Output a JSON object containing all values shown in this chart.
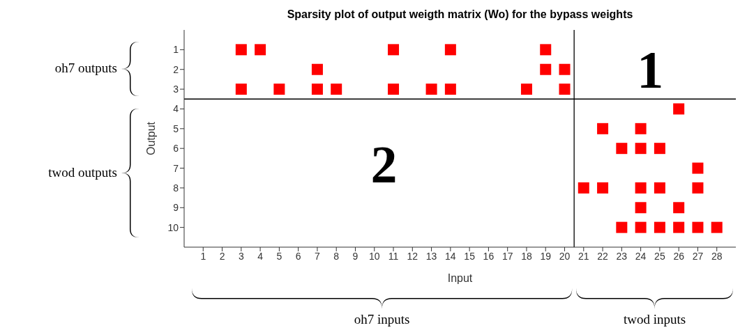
{
  "chart_data": {
    "type": "scatter",
    "title": "Sparsity plot of output weigth matrix (Wo) for the bypass weights",
    "xlabel": "Input",
    "ylabel": "Output",
    "series": [
      {
        "color": "#ff0000",
        "x": [
          3,
          4,
          11,
          14,
          19,
          7,
          19,
          20,
          3,
          5,
          7,
          8,
          11,
          13,
          14,
          18,
          20,
          26,
          22,
          24,
          23,
          24,
          25,
          27,
          21,
          22,
          24,
          25,
          27,
          24,
          26,
          23,
          24,
          25,
          26,
          27,
          28
        ],
        "values": [
          1,
          1,
          1,
          1,
          1,
          2,
          2,
          2,
          3,
          3,
          3,
          3,
          3,
          3,
          3,
          3,
          3,
          4,
          5,
          5,
          6,
          6,
          6,
          7,
          8,
          8,
          8,
          8,
          8,
          9,
          9,
          10,
          10,
          10,
          10,
          10,
          10
        ]
      }
    ],
    "xlim": [
      0,
      29
    ],
    "xticks": [
      1,
      2,
      3,
      4,
      5,
      6,
      7,
      8,
      9,
      10,
      11,
      12,
      13,
      14,
      15,
      16,
      17,
      18,
      19,
      20,
      21,
      22,
      23,
      24,
      25,
      26,
      27,
      28
    ],
    "ylim": [
      11,
      0
    ],
    "yticks": [
      1,
      2,
      3,
      4,
      5,
      6,
      7,
      8,
      9,
      10
    ],
    "marker": "square",
    "grid": false,
    "legend": false,
    "ref_lines": [
      {
        "axis": "y",
        "value": 3.5,
        "color": "#000000"
      },
      {
        "axis": "x",
        "value": 20.5,
        "color": "#000000"
      }
    ],
    "annotations": [
      "1",
      "2",
      "oh7 outputs",
      "twod outputs",
      "oh7 inputs",
      "twod inputs"
    ]
  }
}
